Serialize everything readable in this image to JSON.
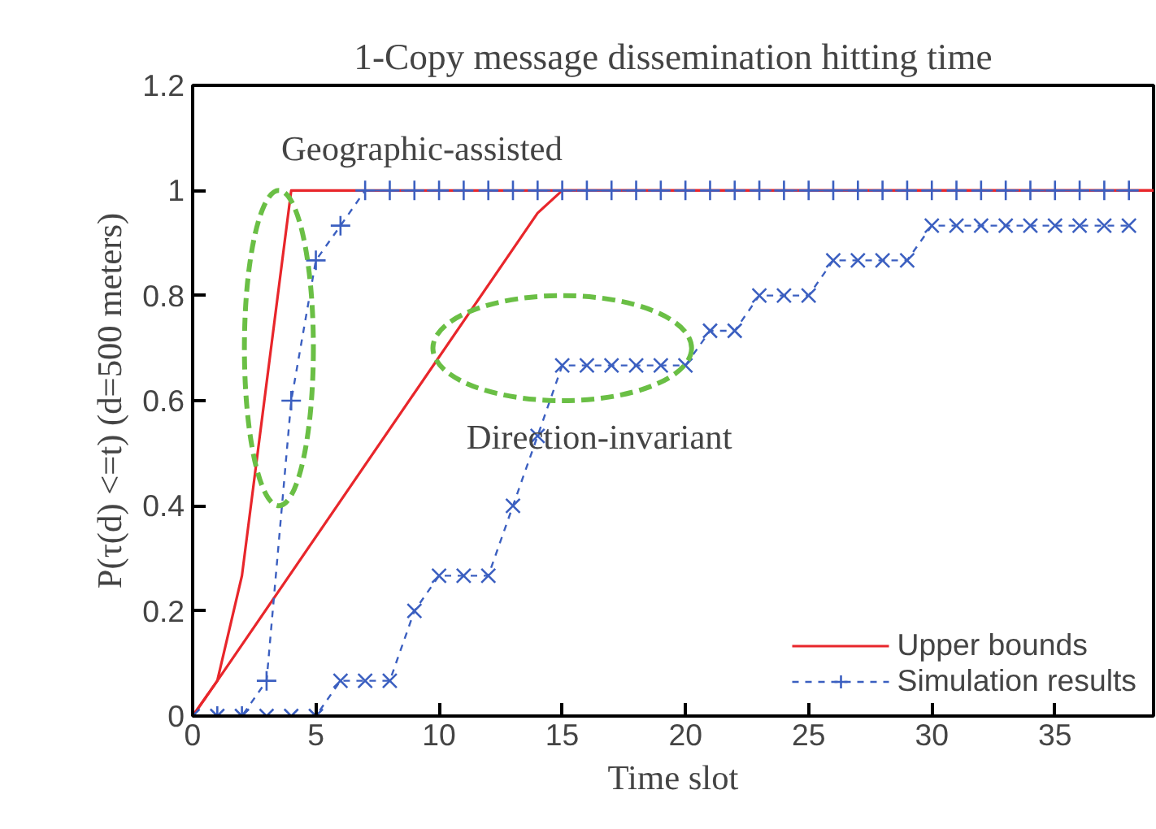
{
  "chart_data": {
    "type": "line",
    "title": "1-Copy message dissemination hitting time",
    "xlabel": "Time slot",
    "ylabel": "P(τ(d) <=t) (d=500 meters)",
    "xlim": [
      0,
      39
    ],
    "ylim": [
      0,
      1.2
    ],
    "xticks": [
      0,
      5,
      10,
      15,
      20,
      25,
      30,
      35
    ],
    "yticks": [
      0,
      0.2,
      0.4,
      0.6,
      0.8,
      1,
      1.2
    ],
    "grid": false,
    "legend": "bottom right",
    "annotations": [
      "Geographic-assisted",
      "Direction-invariant"
    ],
    "series": [
      {
        "name": "Upper bounds",
        "color": "#e8262b",
        "x": [
          0,
          1,
          2,
          4,
          39
        ],
        "values": [
          0,
          0.067,
          0.267,
          1,
          1
        ],
        "marker": "none",
        "line_style": "solid"
      },
      {
        "color": "#e8262b",
        "x": [
          0,
          1,
          14,
          15,
          39
        ],
        "values": [
          0,
          0.067,
          0.957,
          1,
          1
        ],
        "marker": "none",
        "line_style": "solid"
      },
      {
        "name": "Simulation results",
        "color": "#3b5fc0",
        "x": [
          0,
          1,
          2,
          3,
          4,
          5,
          6,
          7,
          8,
          9,
          10,
          11,
          12,
          13,
          14,
          15,
          16,
          17,
          18,
          19,
          20,
          21,
          22,
          23,
          24,
          25,
          26,
          27,
          28,
          29,
          30,
          31,
          32,
          33,
          34,
          35,
          36,
          37,
          38
        ],
        "values": [
          0,
          0,
          0,
          0.067,
          0.6,
          0.867,
          0.933,
          1,
          1,
          1,
          1,
          1,
          1,
          1,
          1,
          1,
          1,
          1,
          1,
          1,
          1,
          1,
          1,
          1,
          1,
          1,
          1,
          1,
          1,
          1,
          1,
          1,
          1,
          1,
          1,
          1,
          1,
          1,
          1
        ],
        "marker": "cross",
        "line_style": "dashed"
      },
      {
        "color": "#3b5fc0",
        "x": [
          0,
          1,
          2,
          3,
          4,
          5,
          6,
          7,
          8,
          9,
          10,
          11,
          12,
          13,
          14,
          15,
          16,
          17,
          18,
          19,
          20,
          21,
          22,
          23,
          24,
          25,
          26,
          27,
          28,
          29,
          30,
          31,
          32,
          33,
          34,
          35,
          36,
          37,
          38
        ],
        "values": [
          0,
          0,
          0,
          0,
          0,
          0,
          0.067,
          0.067,
          0.067,
          0.2,
          0.267,
          0.267,
          0.267,
          0.4,
          0.533,
          0.667,
          0.667,
          0.667,
          0.667,
          0.667,
          0.667,
          0.733,
          0.733,
          0.8,
          0.8,
          0.8,
          0.867,
          0.867,
          0.867,
          0.867,
          0.933,
          0.933,
          0.933,
          0.933,
          0.933,
          0.933,
          0.933,
          0.933,
          0.933
        ],
        "marker": "x",
        "line_style": "dashed"
      }
    ]
  }
}
